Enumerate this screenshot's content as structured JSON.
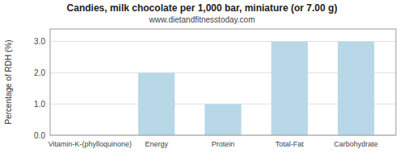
{
  "chart_data": {
    "type": "bar",
    "title": "Candies, milk chocolate per 1,000 bar, miniature (or 7.00 g)",
    "subtitle": "www.dietandfitnesstoday.com",
    "categories": [
      "Vitamin-K-(phylloquinone)",
      "Energy",
      "Protein",
      "Total-Fat",
      "Carbohydrate"
    ],
    "values": [
      0.0,
      2.0,
      1.0,
      3.0,
      3.0
    ],
    "color": "#b8d8e8",
    "ylabel": "Percentage of RDH (%)",
    "ylim": [
      0.0,
      3.4
    ],
    "yticks": [
      {
        "value": 0.0,
        "label": "0.0"
      },
      {
        "value": 1.0,
        "label": "1.0"
      },
      {
        "value": 2.0,
        "label": "2.0"
      },
      {
        "value": 3.0,
        "label": "3.0"
      }
    ],
    "grid": true
  }
}
